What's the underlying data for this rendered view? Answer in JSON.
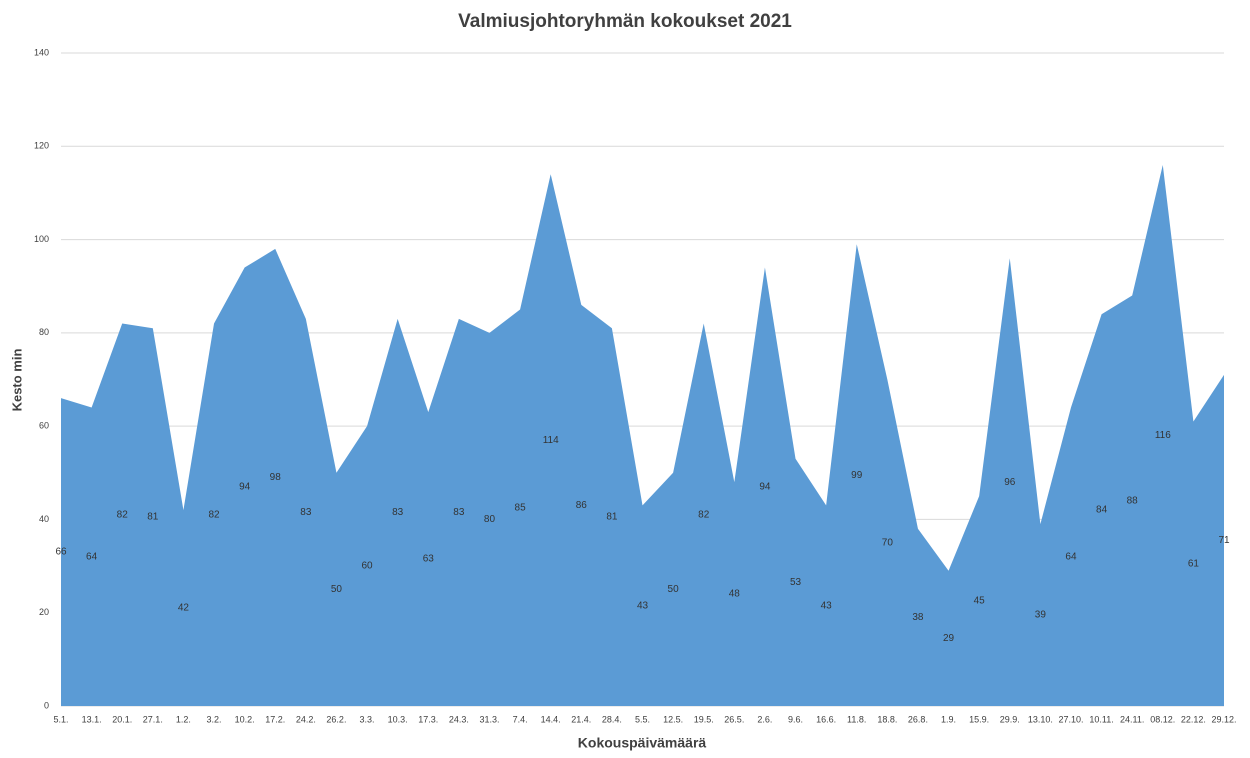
{
  "chart_data": {
    "type": "area",
    "title": "Valmiusjohtoryhmän kokoukset 2021",
    "x_label": "Kokouspäivämäärä",
    "y_label": "Kesto min",
    "categories": [
      "5.1.",
      "13.1.",
      "20.1.",
      "27.1.",
      "1.2.",
      "3.2.",
      "10.2.",
      "17.2.",
      "24.2.",
      "26.2.",
      "3.3.",
      "10.3.",
      "17.3.",
      "24.3.",
      "31.3.",
      "7.4.",
      "14.4.",
      "21.4.",
      "28.4.",
      "5.5.",
      "12.5.",
      "19.5.",
      "26.5.",
      "2.6.",
      "9.6.",
      "16.6.",
      "11.8.",
      "18.8.",
      "26.8.",
      "1.9.",
      "15.9.",
      "29.9.",
      "13.10.",
      "27.10.",
      "10.11.",
      "24.11.",
      "08.12.",
      "22.12.",
      "29.12."
    ],
    "values": [
      66,
      64,
      82,
      81,
      42,
      82,
      94,
      98,
      83,
      50,
      60,
      83,
      63,
      83,
      80,
      85,
      114,
      86,
      81,
      43,
      50,
      82,
      48,
      94,
      53,
      43,
      99,
      70,
      38,
      29,
      45,
      96,
      39,
      64,
      84,
      88,
      116,
      61,
      71
    ],
    "color": "#5b9bd5",
    "ylim": [
      0,
      140
    ],
    "yticks": [
      0,
      20,
      40,
      60,
      80,
      100,
      120,
      140
    ],
    "grid": true
  }
}
